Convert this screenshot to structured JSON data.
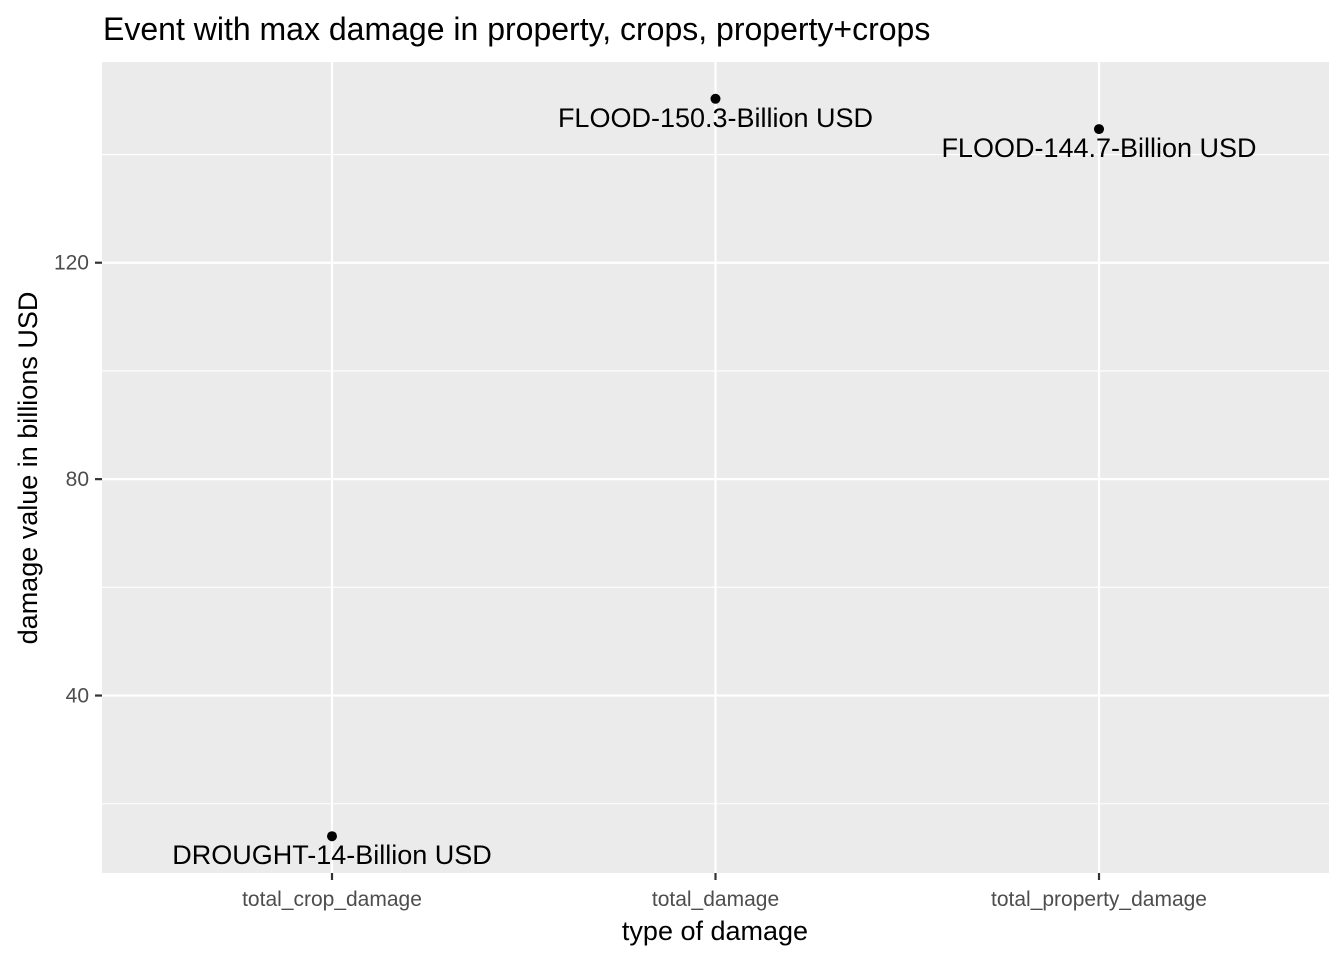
{
  "chart_data": {
    "type": "scatter",
    "title": "Event with max damage in property, crops, property+crops",
    "xlabel": "type of damage",
    "ylabel": "damage value in billions USD",
    "categories": [
      "total_crop_damage",
      "total_damage",
      "total_property_damage"
    ],
    "points": [
      {
        "x": "total_crop_damage",
        "y": 14.0,
        "label": "DROUGHT-14-Billion USD"
      },
      {
        "x": "total_damage",
        "y": 150.3,
        "label": "FLOOD-150.3-Billion USD"
      },
      {
        "x": "total_property_damage",
        "y": 144.7,
        "label": "FLOOD-144.7-Billion USD"
      }
    ],
    "yticks": [
      40,
      80,
      120
    ],
    "ytick_labels": [
      "40",
      "80",
      "120"
    ],
    "ylim": [
      7.2,
      157.1
    ],
    "grid": true,
    "legend": "none",
    "colors": {
      "panel": "#ebebeb",
      "grid": "#ffffff",
      "point": "#000000",
      "tick_text": "#4d4d4d"
    }
  }
}
